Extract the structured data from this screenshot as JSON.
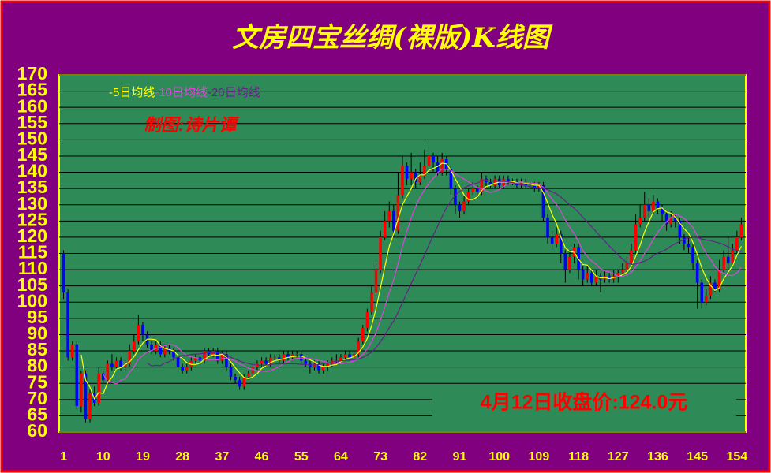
{
  "chart_data": {
    "type": "candlestick",
    "title": "文房四宝丝绸(裸版)K线图",
    "annotations": [
      "制图:诗片谭",
      "4月12日收盘价:124.0元"
    ],
    "up_color": "#ff0000",
    "down_color": "#0000ff",
    "grid": true,
    "xlim": [
      0,
      156
    ],
    "xticks": [
      1,
      10,
      19,
      28,
      37,
      46,
      55,
      64,
      73,
      82,
      91,
      100,
      109,
      118,
      127,
      136,
      145,
      154
    ],
    "ylim": [
      60,
      170
    ],
    "yticks": [
      60,
      65,
      70,
      75,
      80,
      85,
      90,
      95,
      100,
      105,
      110,
      115,
      120,
      125,
      130,
      135,
      140,
      145,
      150,
      155,
      160,
      165,
      170
    ],
    "moving_averages": [
      {
        "name": "-5日均线",
        "color": "#ffff00"
      },
      {
        "name": "-10日均线",
        "color": "#dd44dd"
      },
      {
        "name": "-20日均线",
        "color": "#662288"
      }
    ],
    "x": [
      1,
      2,
      3,
      4,
      5,
      6,
      7,
      8,
      9,
      10,
      11,
      12,
      13,
      14,
      15,
      16,
      17,
      18,
      19,
      20,
      21,
      22,
      23,
      24,
      25,
      26,
      27,
      28,
      29,
      30,
      31,
      32,
      33,
      34,
      35,
      36,
      37,
      38,
      39,
      40,
      41,
      42,
      43,
      44,
      45,
      46,
      47,
      48,
      49,
      50,
      51,
      52,
      53,
      54,
      55,
      56,
      57,
      58,
      59,
      60,
      61,
      62,
      63,
      64,
      65,
      66,
      67,
      68,
      69,
      70,
      71,
      72,
      73,
      74,
      75,
      76,
      77,
      78,
      79,
      80,
      81,
      82,
      83,
      84,
      85,
      86,
      87,
      88,
      89,
      90,
      91,
      92,
      93,
      94,
      95,
      96,
      97,
      98,
      99,
      100,
      101,
      102,
      103,
      104,
      105,
      106,
      107,
      108,
      109,
      110,
      111,
      112,
      113,
      114,
      115,
      116,
      117,
      118,
      119,
      120,
      121,
      122,
      123,
      124,
      125,
      126,
      127,
      128,
      129,
      130,
      131,
      132,
      133,
      134,
      135,
      136,
      137,
      138,
      139,
      140,
      141,
      142,
      143,
      144,
      145,
      146,
      147,
      148,
      149,
      150,
      151,
      152,
      153,
      154,
      155
    ],
    "open": [
      115,
      103,
      83,
      87,
      68,
      78,
      64,
      72,
      69,
      78,
      76,
      81,
      80,
      82,
      80,
      81,
      85,
      88,
      93,
      90,
      87,
      85,
      87,
      84,
      86,
      85,
      83,
      80,
      79,
      80,
      82,
      83,
      82,
      85,
      84,
      85,
      82,
      84,
      80,
      77,
      76,
      74,
      77,
      78,
      80,
      81,
      82,
      81,
      83,
      83,
      82,
      84,
      83,
      84,
      84,
      82,
      81,
      80,
      81,
      79,
      80,
      81,
      82,
      82,
      83,
      84,
      83,
      84,
      88,
      92,
      97,
      103,
      110,
      120,
      125,
      128,
      122,
      133,
      142,
      138,
      140,
      137,
      139,
      142,
      145,
      143,
      140,
      144,
      141,
      135,
      130,
      128,
      131,
      134,
      135,
      134,
      138,
      137,
      136,
      138,
      136,
      138,
      137,
      137,
      136,
      137,
      136,
      136,
      135,
      136,
      126,
      120,
      118,
      121,
      115,
      110,
      114,
      117,
      110,
      107,
      109,
      106,
      108,
      107,
      108,
      107,
      108,
      109,
      110,
      112,
      116,
      124,
      126,
      130,
      128,
      131,
      129,
      127,
      124,
      126,
      125,
      120,
      118,
      117,
      112,
      106,
      100,
      102,
      106,
      104,
      110,
      114,
      112,
      116,
      120
    ],
    "high": [
      116,
      104,
      88,
      88,
      79,
      79,
      73,
      74,
      80,
      79,
      82,
      84,
      83,
      83,
      82,
      87,
      90,
      96,
      94,
      91,
      88,
      88,
      88,
      87,
      87,
      86,
      84,
      81,
      81,
      83,
      84,
      84,
      86,
      86,
      86,
      86,
      85,
      85,
      81,
      78,
      77,
      78,
      79,
      81,
      82,
      83,
      83,
      84,
      84,
      84,
      85,
      85,
      85,
      85,
      85,
      83,
      82,
      82,
      82,
      81,
      82,
      83,
      84,
      84,
      85,
      85,
      85,
      89,
      93,
      98,
      105,
      112,
      122,
      128,
      131,
      130,
      140,
      145,
      143,
      146,
      141,
      143,
      147,
      150,
      146,
      145,
      146,
      145,
      142,
      136,
      131,
      133,
      135,
      137,
      136,
      140,
      139,
      138,
      139,
      139,
      139,
      139,
      138,
      138,
      138,
      138,
      137,
      137,
      137,
      137,
      127,
      122,
      123,
      122,
      116,
      116,
      118,
      118,
      111,
      111,
      110,
      110,
      109,
      110,
      109,
      110,
      110,
      112,
      114,
      118,
      127,
      130,
      134,
      132,
      133,
      132,
      130,
      128,
      128,
      127,
      126,
      121,
      120,
      118,
      113,
      107,
      104,
      108,
      107,
      113,
      116,
      120,
      118,
      122,
      126
    ],
    "low": [
      101,
      82,
      82,
      67,
      66,
      63,
      63,
      68,
      68,
      75,
      75,
      79,
      79,
      79,
      79,
      80,
      84,
      87,
      88,
      86,
      84,
      84,
      83,
      83,
      84,
      82,
      79,
      78,
      78,
      79,
      81,
      81,
      81,
      83,
      83,
      81,
      81,
      79,
      76,
      75,
      73,
      73,
      76,
      77,
      79,
      80,
      80,
      80,
      82,
      81,
      81,
      82,
      82,
      83,
      81,
      80,
      78,
      79,
      78,
      78,
      79,
      80,
      81,
      81,
      82,
      82,
      82,
      83,
      87,
      91,
      96,
      102,
      109,
      119,
      123,
      120,
      121,
      132,
      136,
      136,
      135,
      136,
      138,
      141,
      140,
      139,
      139,
      139,
      133,
      127,
      126,
      127,
      130,
      133,
      132,
      133,
      135,
      135,
      135,
      135,
      135,
      136,
      136,
      135,
      135,
      135,
      135,
      134,
      134,
      125,
      118,
      116,
      117,
      112,
      106,
      109,
      112,
      107,
      105,
      106,
      105,
      105,
      103,
      106,
      106,
      106,
      106,
      108,
      109,
      111,
      115,
      123,
      125,
      126,
      127,
      127,
      125,
      122,
      123,
      123,
      118,
      116,
      115,
      110,
      98,
      98,
      99,
      101,
      103,
      103,
      109,
      110,
      111,
      115,
      119
    ],
    "close": [
      103,
      83,
      87,
      68,
      78,
      64,
      72,
      69,
      78,
      76,
      81,
      80,
      82,
      80,
      81,
      85,
      88,
      93,
      90,
      87,
      85,
      87,
      84,
      86,
      85,
      83,
      80,
      79,
      80,
      82,
      83,
      82,
      85,
      84,
      85,
      82,
      84,
      80,
      77,
      76,
      74,
      77,
      78,
      80,
      81,
      82,
      81,
      83,
      83,
      82,
      84,
      83,
      84,
      84,
      82,
      81,
      80,
      81,
      79,
      80,
      81,
      82,
      82,
      83,
      84,
      83,
      84,
      88,
      92,
      97,
      103,
      110,
      120,
      125,
      128,
      122,
      133,
      142,
      138,
      140,
      137,
      139,
      142,
      145,
      143,
      140,
      144,
      141,
      135,
      130,
      128,
      131,
      134,
      135,
      134,
      138,
      137,
      136,
      138,
      136,
      138,
      137,
      137,
      136,
      137,
      136,
      136,
      135,
      136,
      126,
      120,
      118,
      121,
      115,
      110,
      114,
      117,
      110,
      107,
      109,
      106,
      108,
      107,
      108,
      107,
      108,
      109,
      110,
      112,
      116,
      124,
      126,
      130,
      128,
      131,
      129,
      127,
      124,
      126,
      125,
      120,
      118,
      117,
      112,
      106,
      100,
      102,
      106,
      104,
      110,
      114,
      112,
      116,
      120,
      124
    ]
  }
}
